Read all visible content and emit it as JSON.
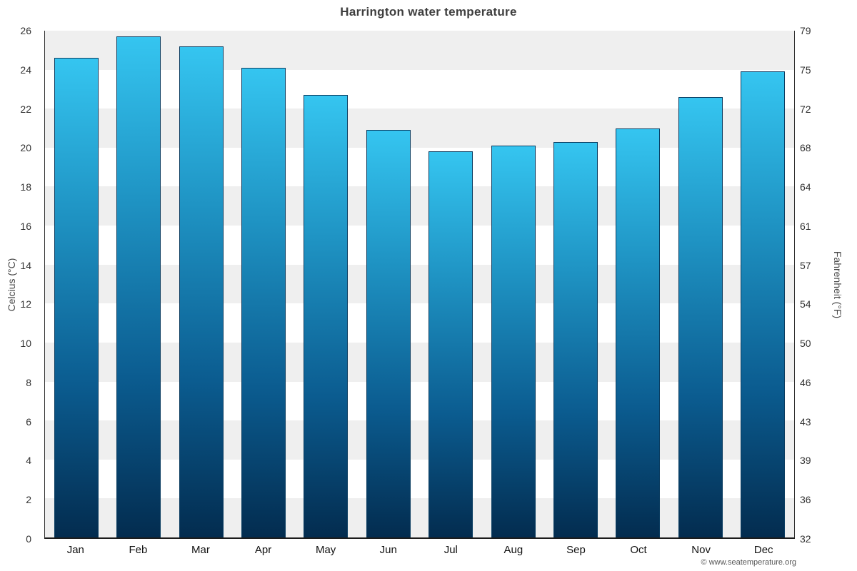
{
  "title": "Harrington water temperature",
  "footer": "© www.seatemperature.org",
  "chart_data": {
    "type": "bar",
    "title": "Harrington water temperature",
    "categories": [
      "Jan",
      "Feb",
      "Mar",
      "Apr",
      "May",
      "Jun",
      "Jul",
      "Aug",
      "Sep",
      "Oct",
      "Nov",
      "Dec"
    ],
    "values": [
      24.6,
      25.7,
      25.2,
      24.1,
      22.7,
      20.9,
      19.8,
      20.1,
      20.3,
      21.0,
      22.6,
      23.9
    ],
    "xlabel": "",
    "ylabel_left": "Celcius (°C)",
    "ylabel_right": "Fahrenheit (°F)",
    "ylim": [
      0,
      26
    ],
    "yticks_celsius": [
      0,
      2,
      4,
      6,
      8,
      10,
      12,
      14,
      16,
      18,
      20,
      22,
      24,
      26
    ],
    "yticks_fahrenheit": [
      "32",
      "36",
      "39",
      "43",
      "46",
      "50",
      "54",
      "57",
      "61",
      "64",
      "68",
      "72",
      "75",
      "79"
    ],
    "grid": "alternating-bands",
    "legend": "none",
    "band_color": "#efefef",
    "bar_gradient_top": "#35c5f0",
    "bar_gradient_bottom": "#032c4f",
    "bar_border_color": "#0a3c60"
  }
}
